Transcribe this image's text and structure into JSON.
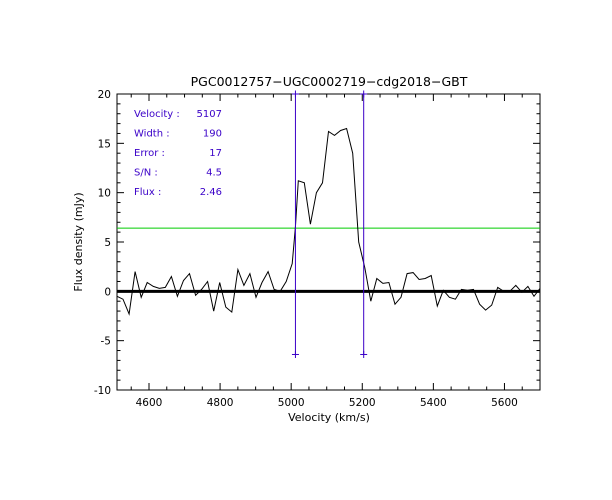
{
  "chart_data": {
    "type": "line",
    "title": "PGC0012757−UGC0002719−cdg2018−GBT",
    "xlabel": "Velocity (km/s)",
    "ylabel": "Flux density (mJy)",
    "xlim": [
      4510,
      5700
    ],
    "ylim": [
      -10,
      20
    ],
    "xticks": [
      4600,
      4800,
      5000,
      5200,
      5400,
      5600
    ],
    "yticks": [
      -10,
      -5,
      0,
      5,
      10,
      15,
      20
    ],
    "grid": false,
    "legend": "none",
    "series": [
      {
        "color": "#000000",
        "x": [
          4510,
          4527,
          4544,
          4561,
          4578,
          4595,
          4612,
          4629,
          4646,
          4663,
          4680,
          4697,
          4714,
          4731,
          4748,
          4765,
          4782,
          4799,
          4816,
          4833,
          4850,
          4867,
          4884,
          4901,
          4918,
          4935,
          4952,
          4969,
          4986,
          5003,
          5012,
          5020,
          5037,
          5054,
          5071,
          5088,
          5105,
          5122,
          5139,
          5156,
          5173,
          5190,
          5207,
          5224,
          5241,
          5258,
          5275,
          5292,
          5309,
          5326,
          5343,
          5360,
          5377,
          5394,
          5411,
          5428,
          5445,
          5462,
          5479,
          5496,
          5513,
          5530,
          5547,
          5564,
          5581,
          5598,
          5615,
          5632,
          5649,
          5666,
          5683,
          5700
        ],
        "y": [
          -0.5,
          -0.8,
          -2.3,
          2.0,
          -0.6,
          0.9,
          0.5,
          0.3,
          0.4,
          1.5,
          -0.5,
          1.1,
          1.8,
          -0.4,
          0.2,
          1.0,
          -2.0,
          0.9,
          -1.6,
          -2.1,
          2.2,
          0.6,
          1.8,
          -0.6,
          0.9,
          2.0,
          0.2,
          0.0,
          1.0,
          2.8,
          6.5,
          11.2,
          11.0,
          6.8,
          10.0,
          11.0,
          16.2,
          15.8,
          16.3,
          16.5,
          14.0,
          5.0,
          2.4,
          -1.0,
          1.3,
          0.8,
          0.9,
          -1.3,
          -0.6,
          1.8,
          1.9,
          1.2,
          1.3,
          1.6,
          -1.5,
          0.1,
          -0.6,
          -0.8,
          0.2,
          0.1,
          0.2,
          -1.3,
          -1.9,
          -1.4,
          0.4,
          0.0,
          0.0,
          0.6,
          -0.1,
          0.5,
          -0.5,
          0.3
        ]
      }
    ],
    "reference_lines": {
      "zero_level": 0,
      "zero_color": "#000000",
      "threshold_level": 6.4,
      "threshold_color": "#00cc00",
      "marker_color": "#3a00c8",
      "markers": [
        {
          "x": 5012,
          "y_low": -6.4,
          "y_high": 20
        },
        {
          "x": 5204,
          "y_low": -6.4,
          "y_high": 20
        }
      ]
    },
    "annotations": {
      "color": "#3a00c8",
      "rows": [
        {
          "label": "Velocity :",
          "value": "5107"
        },
        {
          "label": "Width    :",
          "value": "190"
        },
        {
          "label": "Error    :",
          "value": "17"
        },
        {
          "label": "S/N      :",
          "value": "4.5"
        },
        {
          "label": "Flux     :",
          "value": "2.46"
        }
      ]
    }
  }
}
